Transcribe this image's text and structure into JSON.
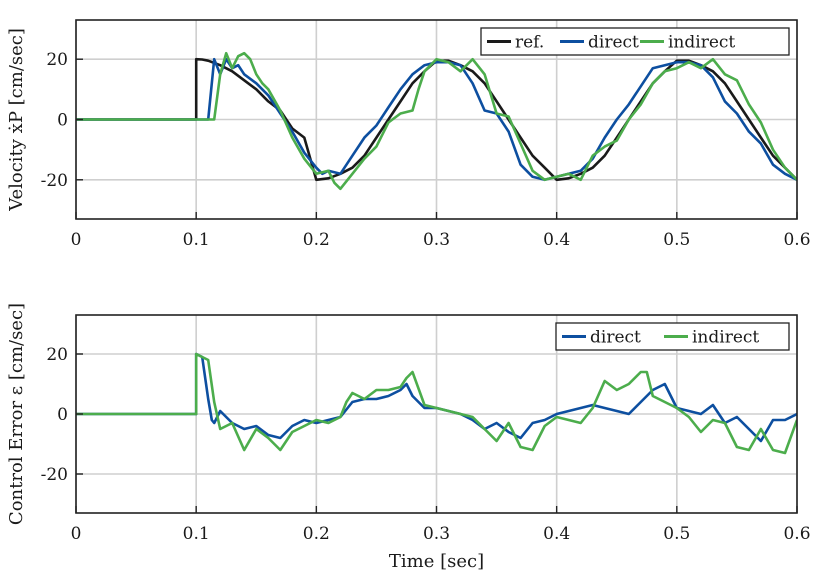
{
  "chart_data": [
    {
      "type": "line",
      "ylabel": "Velocity ẋP [cm/sec]",
      "xlabel": "",
      "xlim": [
        0,
        0.6
      ],
      "ylim": [
        -33,
        33
      ],
      "xticks": [
        "0",
        "0.1",
        "0.2",
        "0.3",
        "0.4",
        "0.5",
        "0.6"
      ],
      "yticks": [
        "20",
        "0",
        "-20"
      ],
      "grid": true,
      "legend_position": "top-right",
      "series": [
        {
          "name": "ref.",
          "color": "#1a1a1a",
          "x": [
            0,
            0.1,
            0.1,
            0.105,
            0.11,
            0.12,
            0.13,
            0.14,
            0.15,
            0.16,
            0.17,
            0.18,
            0.19,
            0.2,
            0.21,
            0.22,
            0.23,
            0.24,
            0.25,
            0.26,
            0.27,
            0.28,
            0.29,
            0.3,
            0.31,
            0.32,
            0.33,
            0.34,
            0.35,
            0.36,
            0.37,
            0.38,
            0.39,
            0.4,
            0.41,
            0.42,
            0.43,
            0.44,
            0.45,
            0.46,
            0.47,
            0.48,
            0.49,
            0.5,
            0.51,
            0.52,
            0.53,
            0.54,
            0.55,
            0.56,
            0.57,
            0.58,
            0.59,
            0.6
          ],
          "y": [
            0,
            0,
            20,
            19.9,
            19.5,
            18,
            16,
            13,
            10,
            6,
            3,
            -3,
            -6,
            -20,
            -19.5,
            -18,
            -16,
            -12,
            -6,
            0,
            6,
            12,
            16,
            19.5,
            19.5,
            18,
            16,
            12,
            6,
            0,
            -6,
            -12,
            -16,
            -20,
            -19.5,
            -18,
            -16,
            -12,
            -6,
            0,
            6,
            12,
            16,
            19.5,
            19.5,
            18,
            16,
            12,
            6,
            0,
            -6,
            -12,
            -16,
            -20
          ]
        },
        {
          "name": "direct",
          "color": "#0d4fa0",
          "x": [
            0,
            0.1,
            0.105,
            0.11,
            0.115,
            0.12,
            0.125,
            0.13,
            0.135,
            0.14,
            0.15,
            0.16,
            0.17,
            0.18,
            0.19,
            0.2,
            0.205,
            0.21,
            0.22,
            0.23,
            0.24,
            0.25,
            0.26,
            0.27,
            0.28,
            0.29,
            0.3,
            0.31,
            0.32,
            0.33,
            0.34,
            0.35,
            0.36,
            0.37,
            0.38,
            0.39,
            0.4,
            0.41,
            0.42,
            0.43,
            0.44,
            0.45,
            0.46,
            0.47,
            0.48,
            0.49,
            0.5,
            0.51,
            0.52,
            0.53,
            0.54,
            0.55,
            0.56,
            0.57,
            0.58,
            0.59,
            0.6
          ],
          "y": [
            0,
            0,
            0,
            0,
            20,
            15,
            20,
            17,
            18,
            15,
            12,
            8,
            2,
            -4,
            -11,
            -16,
            -18,
            -17,
            -18,
            -12,
            -6,
            -2,
            4,
            10,
            15,
            18,
            19,
            19,
            18,
            12,
            3,
            2,
            -4,
            -15,
            -19,
            -20,
            -19,
            -18,
            -17,
            -13,
            -6,
            0,
            5,
            11,
            17,
            18,
            19,
            19,
            18,
            14,
            6,
            2,
            -4,
            -8,
            -15,
            -18,
            -20
          ]
        },
        {
          "name": "indirect",
          "color": "#4cad4c",
          "x": [
            0,
            0.11,
            0.115,
            0.12,
            0.125,
            0.13,
            0.135,
            0.14,
            0.145,
            0.15,
            0.155,
            0.16,
            0.17,
            0.18,
            0.19,
            0.2,
            0.21,
            0.215,
            0.22,
            0.23,
            0.24,
            0.25,
            0.26,
            0.27,
            0.28,
            0.285,
            0.29,
            0.3,
            0.31,
            0.32,
            0.33,
            0.34,
            0.35,
            0.36,
            0.37,
            0.38,
            0.39,
            0.4,
            0.41,
            0.42,
            0.43,
            0.44,
            0.45,
            0.46,
            0.47,
            0.48,
            0.49,
            0.5,
            0.51,
            0.52,
            0.53,
            0.54,
            0.55,
            0.56,
            0.57,
            0.58,
            0.59,
            0.6
          ],
          "y": [
            0,
            0,
            0,
            15,
            22,
            17,
            21,
            22,
            20,
            15,
            12,
            10,
            3,
            -6,
            -13,
            -18,
            -17,
            -21,
            -23,
            -18,
            -13,
            -9,
            -1,
            2,
            3,
            10,
            16,
            20,
            19,
            16,
            20,
            15,
            2,
            1,
            -8,
            -17,
            -20,
            -19,
            -18,
            -20,
            -12,
            -9,
            -7,
            0,
            5,
            12,
            16,
            17,
            19,
            17,
            20,
            15,
            13,
            5,
            -1,
            -10,
            -16,
            -20
          ]
        }
      ]
    },
    {
      "type": "line",
      "ylabel": "Control Error ε [cm/sec]",
      "xlabel": "Time [sec]",
      "xlim": [
        0,
        0.6
      ],
      "ylim": [
        -33,
        33
      ],
      "xticks": [
        "0",
        "0.1",
        "0.2",
        "0.3",
        "0.4",
        "0.5",
        "0.6"
      ],
      "yticks": [
        "20",
        "0",
        "-20"
      ],
      "grid": true,
      "legend_position": "top-right",
      "series": [
        {
          "name": "direct",
          "color": "#0d4fa0",
          "x": [
            0,
            0.1,
            0.1,
            0.105,
            0.11,
            0.113,
            0.115,
            0.12,
            0.13,
            0.14,
            0.15,
            0.16,
            0.17,
            0.18,
            0.19,
            0.2,
            0.21,
            0.22,
            0.23,
            0.24,
            0.25,
            0.26,
            0.27,
            0.275,
            0.28,
            0.29,
            0.3,
            0.31,
            0.32,
            0.33,
            0.34,
            0.35,
            0.36,
            0.37,
            0.38,
            0.39,
            0.4,
            0.41,
            0.42,
            0.43,
            0.44,
            0.45,
            0.46,
            0.47,
            0.48,
            0.49,
            0.5,
            0.51,
            0.52,
            0.53,
            0.54,
            0.55,
            0.56,
            0.57,
            0.58,
            0.59,
            0.6
          ],
          "y": [
            0,
            0,
            20,
            19,
            5,
            -2,
            -3,
            1,
            -3,
            -5,
            -4,
            -7,
            -8,
            -4,
            -2,
            -3,
            -2,
            -1,
            4,
            5,
            5,
            6,
            8,
            10,
            6,
            2,
            2,
            1,
            0,
            -2,
            -5,
            -3,
            -6,
            -8,
            -3,
            -2,
            0,
            1,
            2,
            3,
            2,
            1,
            0,
            4,
            8,
            10,
            2,
            1,
            0,
            3,
            -3,
            -1,
            -5,
            -9,
            -2,
            -2,
            0
          ]
        },
        {
          "name": "indirect",
          "color": "#4cad4c",
          "x": [
            0,
            0.1,
            0.1,
            0.11,
            0.115,
            0.12,
            0.13,
            0.14,
            0.15,
            0.16,
            0.17,
            0.18,
            0.19,
            0.2,
            0.21,
            0.22,
            0.225,
            0.23,
            0.24,
            0.25,
            0.26,
            0.27,
            0.275,
            0.28,
            0.29,
            0.3,
            0.31,
            0.32,
            0.33,
            0.34,
            0.35,
            0.36,
            0.37,
            0.38,
            0.39,
            0.4,
            0.41,
            0.42,
            0.43,
            0.44,
            0.45,
            0.46,
            0.47,
            0.475,
            0.48,
            0.49,
            0.5,
            0.51,
            0.52,
            0.53,
            0.54,
            0.55,
            0.56,
            0.57,
            0.58,
            0.59,
            0.6
          ],
          "y": [
            0,
            0,
            20,
            18,
            4,
            -5,
            -3,
            -12,
            -5,
            -8,
            -12,
            -6,
            -4,
            -2,
            -3,
            -1,
            4,
            7,
            5,
            8,
            8,
            9,
            12,
            14,
            3,
            2,
            1,
            0,
            -1,
            -5,
            -9,
            -3,
            -11,
            -12,
            -4,
            -1,
            -2,
            -3,
            2,
            11,
            8,
            10,
            14,
            14,
            6,
            4,
            2,
            -1,
            -6,
            -2,
            -3,
            -11,
            -12,
            -5,
            -12,
            -13,
            -2
          ]
        }
      ]
    }
  ]
}
